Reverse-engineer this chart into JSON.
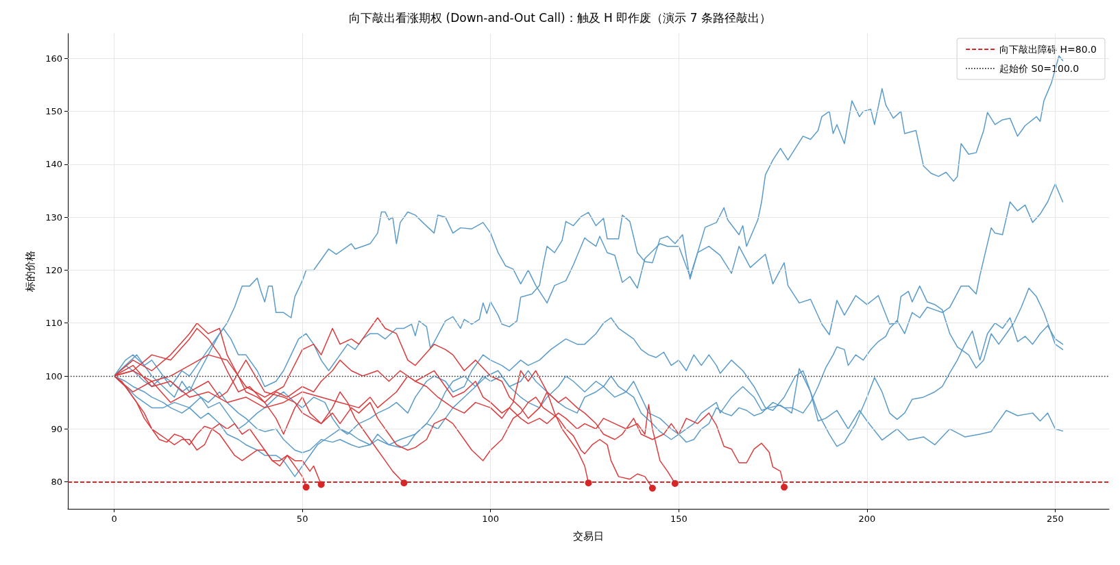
{
  "chart_data": {
    "type": "line",
    "title": "向下敲出看涨期权 (Down-and-Out Call)：触及 H 即作废（演示 7 条路径敲出）",
    "xlabel": "交易日",
    "ylabel": "标的价格",
    "xlim": [
      -12.3,
      264.3
    ],
    "ylim": [
      74.9,
      164.7
    ],
    "xticks": [
      0,
      50,
      100,
      150,
      200,
      250
    ],
    "yticks": [
      80,
      90,
      100,
      110,
      120,
      130,
      140,
      150,
      160
    ],
    "grid": true,
    "legend": "top right",
    "marker": "none",
    "line_style": "solid",
    "ref_lines": [
      {
        "axis": "y",
        "value": 80,
        "label": "向下敲出障碍 H=80.0",
        "color": "#d62728",
        "line_style": "dashed"
      },
      {
        "axis": "y",
        "value": 100,
        "label": "起始价 S0=100.0",
        "color": "#333333",
        "line_style": "dotted"
      }
    ],
    "series": [
      {
        "color": "#5a9bc9",
        "x": [
          0,
          3,
          5,
          8,
          10,
          13,
          15,
          18,
          20,
          23,
          25,
          28,
          29,
          31,
          33,
          35,
          38,
          40,
          43,
          45,
          47,
          49,
          51,
          53,
          55,
          57,
          60,
          62,
          64,
          66,
          68,
          70,
          72,
          75,
          77,
          79,
          80,
          81,
          83,
          84,
          85,
          88,
          90,
          92,
          93,
          95,
          97,
          98,
          99,
          100,
          102,
          103,
          105,
          107,
          108,
          111,
          113,
          114,
          115,
          117,
          119,
          120,
          122,
          124,
          126,
          128,
          130,
          131,
          134,
          135,
          137,
          139,
          141,
          143,
          145,
          147,
          149,
          151,
          153,
          155,
          157,
          160,
          162,
          163,
          166,
          167,
          168,
          171,
          172,
          173,
          175,
          177,
          179,
          183,
          185,
          187,
          188,
          190,
          191,
          192,
          194,
          196,
          198,
          199,
          201,
          202,
          204,
          205,
          207,
          209,
          210,
          213,
          215,
          217,
          219,
          221,
          223,
          224,
          225,
          227,
          229,
          231,
          232,
          234,
          236,
          238,
          240,
          242,
          245,
          246,
          247,
          249,
          251,
          252
        ],
        "values": [
          100,
          103,
          104,
          102,
          103,
          100,
          98,
          101,
          100,
          103,
          105,
          108,
          109,
          107,
          104,
          104,
          101,
          98,
          99,
          101,
          104,
          107,
          108,
          106,
          103,
          101,
          104,
          106,
          105,
          107,
          108,
          108,
          107,
          109,
          109,
          109.8,
          107.6,
          110.4,
          109.3,
          105.3,
          106.4,
          110.4,
          111.2,
          109,
          110.7,
          109.8,
          110.7,
          113.8,
          111.8,
          114,
          111.5,
          109.8,
          109.3,
          110.4,
          114.9,
          115.5,
          117.1,
          121.1,
          124.5,
          123.3,
          125.6,
          129.2,
          128.4,
          130.1,
          130.9,
          128.4,
          129.8,
          125.9,
          125.9,
          130.4,
          129.2,
          123.3,
          121.6,
          121.4,
          125.9,
          126.4,
          125,
          126.7,
          118.3,
          123.3,
          128.1,
          129,
          131.8,
          129.5,
          126.7,
          128.4,
          124.5,
          129.5,
          132.9,
          138,
          140.8,
          143,
          140.8,
          145.3,
          144.7,
          146.4,
          149,
          150,
          145.8,
          147.5,
          143.9,
          152,
          149,
          150,
          150.4,
          147.5,
          154.3,
          151.2,
          148.7,
          150,
          145.8,
          146.4,
          139.7,
          138.3,
          137.7,
          138.5,
          136.8,
          137.7,
          143.9,
          141.9,
          142.2,
          146.4,
          149.8,
          147.5,
          148.4,
          148.7,
          145.3,
          147.3,
          149,
          148.1,
          152,
          155.4,
          160.5,
          159.6
        ]
      },
      {
        "color": "#5a9bc9",
        "x": [
          0,
          3,
          6,
          8,
          10,
          13,
          16,
          18,
          20,
          22,
          25,
          28,
          30,
          32,
          34,
          36,
          38,
          39,
          40,
          41,
          42,
          43,
          45,
          47,
          48,
          50,
          51,
          53,
          55,
          57,
          59,
          61,
          63,
          64,
          66,
          68,
          70,
          71,
          72,
          73,
          74,
          75,
          76,
          78,
          80,
          82,
          85,
          86,
          88,
          90,
          92,
          95,
          98,
          100,
          102,
          104,
          106,
          108,
          110,
          112,
          115,
          117,
          120,
          122,
          125,
          126,
          128,
          129,
          131,
          133,
          135,
          137,
          139,
          141,
          145,
          147,
          150,
          153,
          155,
          158,
          161,
          164,
          166,
          169,
          173,
          175,
          178,
          179,
          182,
          185,
          188,
          190,
          192,
          194,
          197,
          200,
          203,
          206,
          208,
          209,
          211,
          212,
          214,
          216,
          218,
          220,
          222,
          224,
          227,
          229,
          231,
          233,
          235,
          237,
          239,
          241,
          243,
          245,
          247,
          249,
          250,
          252
        ],
        "values": [
          100,
          102,
          104,
          102,
          100,
          98,
          96,
          99,
          97,
          100,
          104,
          108,
          110,
          113,
          117,
          117,
          118.5,
          116,
          114,
          117,
          117,
          112,
          112,
          111,
          115,
          118,
          120,
          120,
          122,
          124,
          123,
          124,
          125,
          124,
          124.5,
          125,
          127,
          131,
          131,
          129.5,
          130,
          125,
          129,
          131,
          130.4,
          129,
          127,
          130.4,
          130,
          127,
          128,
          127.8,
          129,
          127,
          123.3,
          120.8,
          120.2,
          117.4,
          120,
          117.1,
          113.8,
          117.1,
          118,
          121,
          126.1,
          125.5,
          124.5,
          126.4,
          123.3,
          122.8,
          117.7,
          118.8,
          116.6,
          122.2,
          125,
          124.5,
          124.5,
          118.8,
          123.3,
          124.5,
          122.8,
          119.4,
          124.5,
          120.5,
          123,
          117.4,
          121.4,
          117.1,
          113.8,
          114.5,
          109.8,
          107.8,
          114.3,
          111.5,
          115.2,
          113.5,
          115.2,
          109.8,
          110,
          115,
          116,
          114,
          117,
          114,
          113.5,
          112.5,
          108,
          105.5,
          104,
          101.5,
          103,
          108,
          106,
          108,
          110,
          113,
          116.6,
          115,
          112,
          108,
          106,
          105
        ]
      },
      {
        "color": "#5a9bc9",
        "x": [
          0,
          3,
          6,
          10,
          13,
          16,
          20,
          23,
          25,
          28,
          30,
          33,
          35,
          38,
          40,
          43,
          45,
          48,
          50,
          53,
          56,
          58,
          60,
          63,
          65,
          68,
          70,
          73,
          76,
          80,
          83,
          86,
          88,
          90,
          93,
          96,
          99,
          102,
          105,
          108,
          110,
          112,
          115,
          118,
          120,
          123,
          125,
          128,
          130,
          133,
          136,
          138,
          140,
          143,
          145,
          148,
          150,
          152,
          154,
          156,
          158,
          160,
          162,
          164,
          166,
          168,
          170,
          172,
          175,
          178,
          180,
          183,
          185,
          187,
          189,
          191,
          192,
          194,
          195,
          197,
          199,
          201,
          203,
          205,
          206,
          208,
          210,
          212,
          214,
          216,
          218,
          220,
          222,
          225,
          227,
          229,
          230,
          233,
          234,
          236,
          238,
          240,
          242,
          244,
          246,
          248,
          250,
          252
        ],
        "values": [
          100,
          98,
          96,
          94,
          94,
          95,
          94,
          96,
          94,
          95,
          93,
          90,
          91,
          93,
          94,
          96,
          97,
          95,
          94,
          96,
          95,
          92,
          90,
          89,
          88,
          87,
          88,
          87,
          88,
          89,
          91,
          94,
          97,
          99,
          100,
          98,
          100,
          101,
          98,
          99,
          101,
          99,
          97,
          95,
          94,
          93,
          96,
          97,
          98,
          96,
          97,
          96,
          93,
          91,
          89.5,
          88,
          89,
          87.5,
          88,
          90,
          91,
          94,
          93,
          92.5,
          94,
          93.5,
          92.5,
          93,
          95,
          94,
          94,
          93,
          95,
          98,
          101.5,
          104,
          105.5,
          105,
          102,
          104,
          103,
          105,
          106.5,
          107.5,
          109,
          110.5,
          108,
          112,
          111,
          113,
          112.5,
          112,
          113,
          117,
          117,
          115.5,
          119,
          128,
          127,
          126.7,
          132.9,
          131.2,
          132.3,
          129,
          130.6,
          132.9,
          136.3,
          132.9
        ]
      },
      {
        "color": "#5a9bc9",
        "x": [
          0,
          3,
          5,
          8,
          10,
          13,
          15,
          18,
          20,
          23,
          25,
          28,
          30,
          33,
          35,
          38,
          40,
          43,
          45,
          47,
          48,
          50,
          52,
          54,
          56,
          58,
          60,
          62,
          65,
          68,
          70,
          73,
          75,
          78,
          80,
          83,
          85,
          88,
          90,
          93,
          95,
          98,
          100,
          103,
          105,
          108,
          110,
          113,
          116,
          118,
          120,
          123,
          125,
          128,
          130,
          132,
          134,
          136,
          138,
          140,
          142,
          144,
          146,
          148,
          150,
          152,
          154,
          156,
          158,
          160,
          161,
          164,
          167,
          170,
          173,
          175,
          178,
          181,
          183,
          185,
          187,
          190,
          192,
          194,
          197,
          200,
          202,
          204,
          206,
          208,
          210,
          212,
          215,
          218,
          220,
          222,
          224,
          226,
          228,
          230,
          232,
          234,
          236,
          238,
          240,
          242,
          244,
          246,
          248,
          250,
          252
        ],
        "values": [
          100,
          99,
          98,
          97,
          96,
          95,
          94,
          93,
          94,
          92,
          93,
          91,
          89,
          88,
          87,
          86,
          85,
          85,
          84,
          82,
          81,
          83,
          85,
          87,
          88,
          89,
          90,
          89,
          91,
          92,
          93,
          94,
          95,
          93,
          96,
          99,
          100,
          99,
          97,
          98,
          101,
          104,
          103,
          102,
          101,
          103,
          102,
          103,
          105,
          106,
          107,
          106,
          106,
          108,
          110,
          111,
          109,
          108,
          107,
          105,
          104,
          103.5,
          104.5,
          102,
          103,
          101,
          104,
          102,
          104,
          102,
          100.5,
          103,
          101,
          98,
          94,
          93.5,
          96,
          100,
          101,
          97,
          93,
          89,
          86.7,
          87.5,
          91,
          96,
          99.7,
          97,
          93,
          91.8,
          93,
          95.6,
          96,
          97,
          98,
          100.6,
          103,
          106,
          108.5,
          103,
          108,
          110,
          109,
          111,
          106.5,
          107.5,
          106,
          108,
          109.5,
          107,
          106
        ]
      },
      {
        "color": "#5a9bc9",
        "x": [
          0,
          3,
          5,
          8,
          10,
          13,
          15,
          18,
          20,
          23,
          25,
          28,
          30,
          33,
          35,
          38,
          40,
          43,
          45,
          48,
          50,
          52,
          55,
          58,
          60,
          63,
          65,
          68,
          70,
          73,
          76,
          78,
          80,
          83,
          86,
          88,
          90,
          93,
          96,
          98,
          100,
          103,
          105,
          108,
          110,
          113,
          115,
          118,
          120,
          122,
          125,
          128,
          130,
          132,
          134,
          136,
          138,
          140,
          142,
          145,
          148,
          150,
          152,
          154,
          156,
          158,
          160,
          161,
          164,
          167,
          170,
          172,
          174,
          177,
          180,
          182,
          185,
          187,
          189,
          192,
          195,
          198,
          200,
          204,
          208,
          211,
          215,
          218,
          222,
          226,
          230,
          233,
          237,
          240,
          244,
          246,
          248,
          250,
          252
        ],
        "values": [
          100,
          102,
          101,
          99,
          98,
          100,
          99,
          97,
          98,
          96,
          95,
          97,
          95,
          93,
          92,
          90,
          89.5,
          90,
          88,
          86,
          85.5,
          86,
          88,
          87.5,
          88,
          87,
          86.5,
          87,
          89,
          87,
          86.5,
          87,
          89,
          91,
          90,
          92,
          94,
          96,
          98,
          100,
          99,
          100,
          98,
          96,
          95,
          94,
          96,
          98,
          100,
          99,
          97,
          99,
          98,
          100,
          98,
          97,
          99,
          96,
          93,
          92,
          90,
          89,
          90,
          91,
          93,
          94,
          95,
          93,
          96,
          98,
          96,
          93.5,
          94,
          94.5,
          93,
          101.4,
          97,
          91.5,
          92,
          93.5,
          90,
          93.5,
          91.5,
          87.9,
          90,
          87.9,
          88.5,
          87,
          90,
          88.5,
          89,
          89.5,
          93.5,
          92.5,
          93,
          91.5,
          93,
          90,
          89.6
        ]
      },
      {
        "color": "#dc3a3b",
        "x": [
          0,
          3,
          5,
          8,
          10,
          12,
          14,
          16,
          18,
          20,
          22,
          24,
          26,
          28,
          30,
          32,
          34,
          36,
          38,
          40,
          42,
          44,
          46,
          48,
          50,
          51
        ],
        "values": [
          100,
          98,
          96,
          93,
          90,
          88,
          87.5,
          89,
          88.5,
          87,
          89,
          90.5,
          90,
          89,
          87,
          85,
          84,
          85,
          86,
          86,
          84,
          84,
          85,
          83,
          81,
          79
        ]
      },
      {
        "color": "#dc3a3b",
        "x": [
          0,
          2,
          4,
          6,
          8,
          10,
          12,
          14,
          16,
          18,
          20,
          22,
          24,
          26,
          28,
          30,
          32,
          34,
          36,
          38,
          40,
          42,
          44,
          46,
          48,
          50,
          52,
          53,
          55
        ],
        "values": [
          100,
          99,
          97,
          95,
          92,
          90,
          89,
          88,
          87,
          88,
          88,
          86,
          87,
          90,
          91,
          90,
          91,
          89,
          90,
          88,
          86,
          84,
          83,
          85,
          84,
          84,
          82,
          83,
          79.5
        ]
      },
      {
        "color": "#dc3a3b",
        "x": [
          0,
          5,
          10,
          15,
          20,
          22,
          25,
          28,
          30,
          33,
          35,
          38,
          40,
          43,
          45,
          48,
          50,
          52,
          55,
          58,
          60,
          62,
          64,
          66,
          68,
          70,
          72,
          74,
          76,
          77
        ],
        "values": [
          100,
          103,
          101,
          104,
          108,
          110,
          108,
          109,
          104,
          100,
          97,
          96,
          95,
          92,
          89,
          94,
          96,
          93,
          91,
          94,
          97,
          95,
          92,
          90,
          88,
          86,
          84,
          82,
          80.5,
          79.8
        ]
      },
      {
        "color": "#dc3a3b",
        "x": [
          0,
          5,
          10,
          15,
          20,
          25,
          30,
          35,
          40,
          45,
          50,
          53,
          55,
          58,
          60,
          63,
          65,
          68,
          70,
          72,
          75,
          78,
          80,
          85,
          88,
          90,
          93,
          96,
          100,
          103,
          105,
          108,
          110,
          113,
          115,
          117,
          119,
          121,
          123,
          125,
          126
        ],
        "values": [
          100,
          101,
          99,
          100,
          102,
          104,
          103,
          98,
          96,
          98,
          105,
          106,
          104,
          109,
          106,
          107,
          106,
          109,
          111,
          109,
          108,
          103,
          102,
          106,
          105,
          104,
          101,
          103,
          100,
          99,
          96,
          94,
          92,
          94,
          97,
          93,
          90,
          88,
          86,
          83,
          79.8
        ]
      },
      {
        "color": "#dc3a3b",
        "x": [
          0,
          5,
          10,
          15,
          20,
          25,
          28,
          30,
          35,
          40,
          45,
          48,
          50,
          55,
          58,
          60,
          63,
          65,
          68,
          70,
          73,
          75,
          78,
          80,
          83,
          85,
          88,
          90,
          93,
          95,
          98,
          100,
          103,
          106,
          108,
          110,
          112,
          114,
          116,
          118,
          120,
          122,
          124,
          125,
          127,
          129,
          131,
          132,
          134,
          137,
          139,
          141,
          143
        ],
        "values": [
          100,
          97,
          99,
          95,
          97,
          99,
          96,
          97,
          103,
          97,
          96,
          95,
          93,
          91,
          93,
          91,
          94,
          93,
          95,
          92,
          89,
          87,
          86,
          86.5,
          88,
          91,
          92,
          91,
          88,
          86,
          84,
          86,
          88,
          92,
          93,
          95,
          96,
          94,
          93,
          92,
          90,
          88.7,
          86,
          85.3,
          87,
          88,
          87,
          84,
          81,
          80.5,
          81.5,
          81,
          78.8
        ]
      },
      {
        "color": "#dc3a3b",
        "x": [
          0,
          5,
          10,
          15,
          20,
          25,
          30,
          35,
          40,
          45,
          50,
          55,
          60,
          65,
          68,
          70,
          75,
          78,
          80,
          85,
          88,
          90,
          93,
          96,
          98,
          100,
          103,
          105,
          108,
          110,
          113,
          115,
          118,
          120,
          123,
          125,
          128,
          130,
          133,
          136,
          139,
          141,
          142,
          143,
          145,
          147,
          149
        ],
        "values": [
          100,
          102,
          98,
          99,
          96,
          97,
          95,
          96,
          94,
          95,
          97,
          96,
          95,
          94,
          96,
          94,
          97,
          100,
          99,
          101,
          98,
          96,
          97,
          99,
          96,
          95,
          93,
          94,
          92,
          91,
          92,
          91,
          93,
          92,
          90,
          91,
          90,
          92,
          91,
          90,
          91,
          89,
          94.6,
          90,
          84,
          82,
          79.7
        ]
      },
      {
        "color": "#dc3a3b",
        "x": [
          0,
          5,
          10,
          15,
          20,
          22,
          25,
          28,
          30,
          33,
          36,
          40,
          43,
          46,
          50,
          53,
          55,
          58,
          60,
          63,
          66,
          70,
          73,
          76,
          80,
          83,
          86,
          90,
          93,
          96,
          100,
          103,
          106,
          108,
          110,
          112,
          115,
          118,
          120,
          123,
          125,
          128,
          130,
          133,
          135,
          138,
          140,
          143,
          146,
          148,
          150,
          152,
          155,
          158,
          160,
          162,
          164,
          166,
          168,
          170,
          172,
          174,
          175,
          177,
          178
        ],
        "values": [
          100,
          101,
          104,
          103,
          107,
          109,
          107,
          104,
          101,
          97,
          98,
          95,
          97,
          96,
          98,
          97,
          99,
          101,
          103,
          101,
          100,
          101,
          99,
          101,
          99,
          98,
          96,
          94,
          93,
          95,
          94,
          92,
          95,
          101,
          99,
          101,
          97,
          95,
          96,
          94,
          93,
          91,
          89,
          88,
          89,
          92,
          89,
          88,
          89,
          91,
          89,
          92,
          91,
          93,
          90.7,
          86.7,
          86.2,
          83.6,
          83.6,
          86.2,
          87.3,
          85.6,
          82.8,
          82,
          79
        ]
      },
      {
        "type": "scatter",
        "color": "#d62728",
        "marker": "circle",
        "x": [
          51,
          55,
          77,
          126,
          143,
          149,
          178
        ],
        "values": [
          79,
          79.5,
          79.8,
          79.8,
          78.8,
          79.7,
          79
        ]
      }
    ]
  }
}
